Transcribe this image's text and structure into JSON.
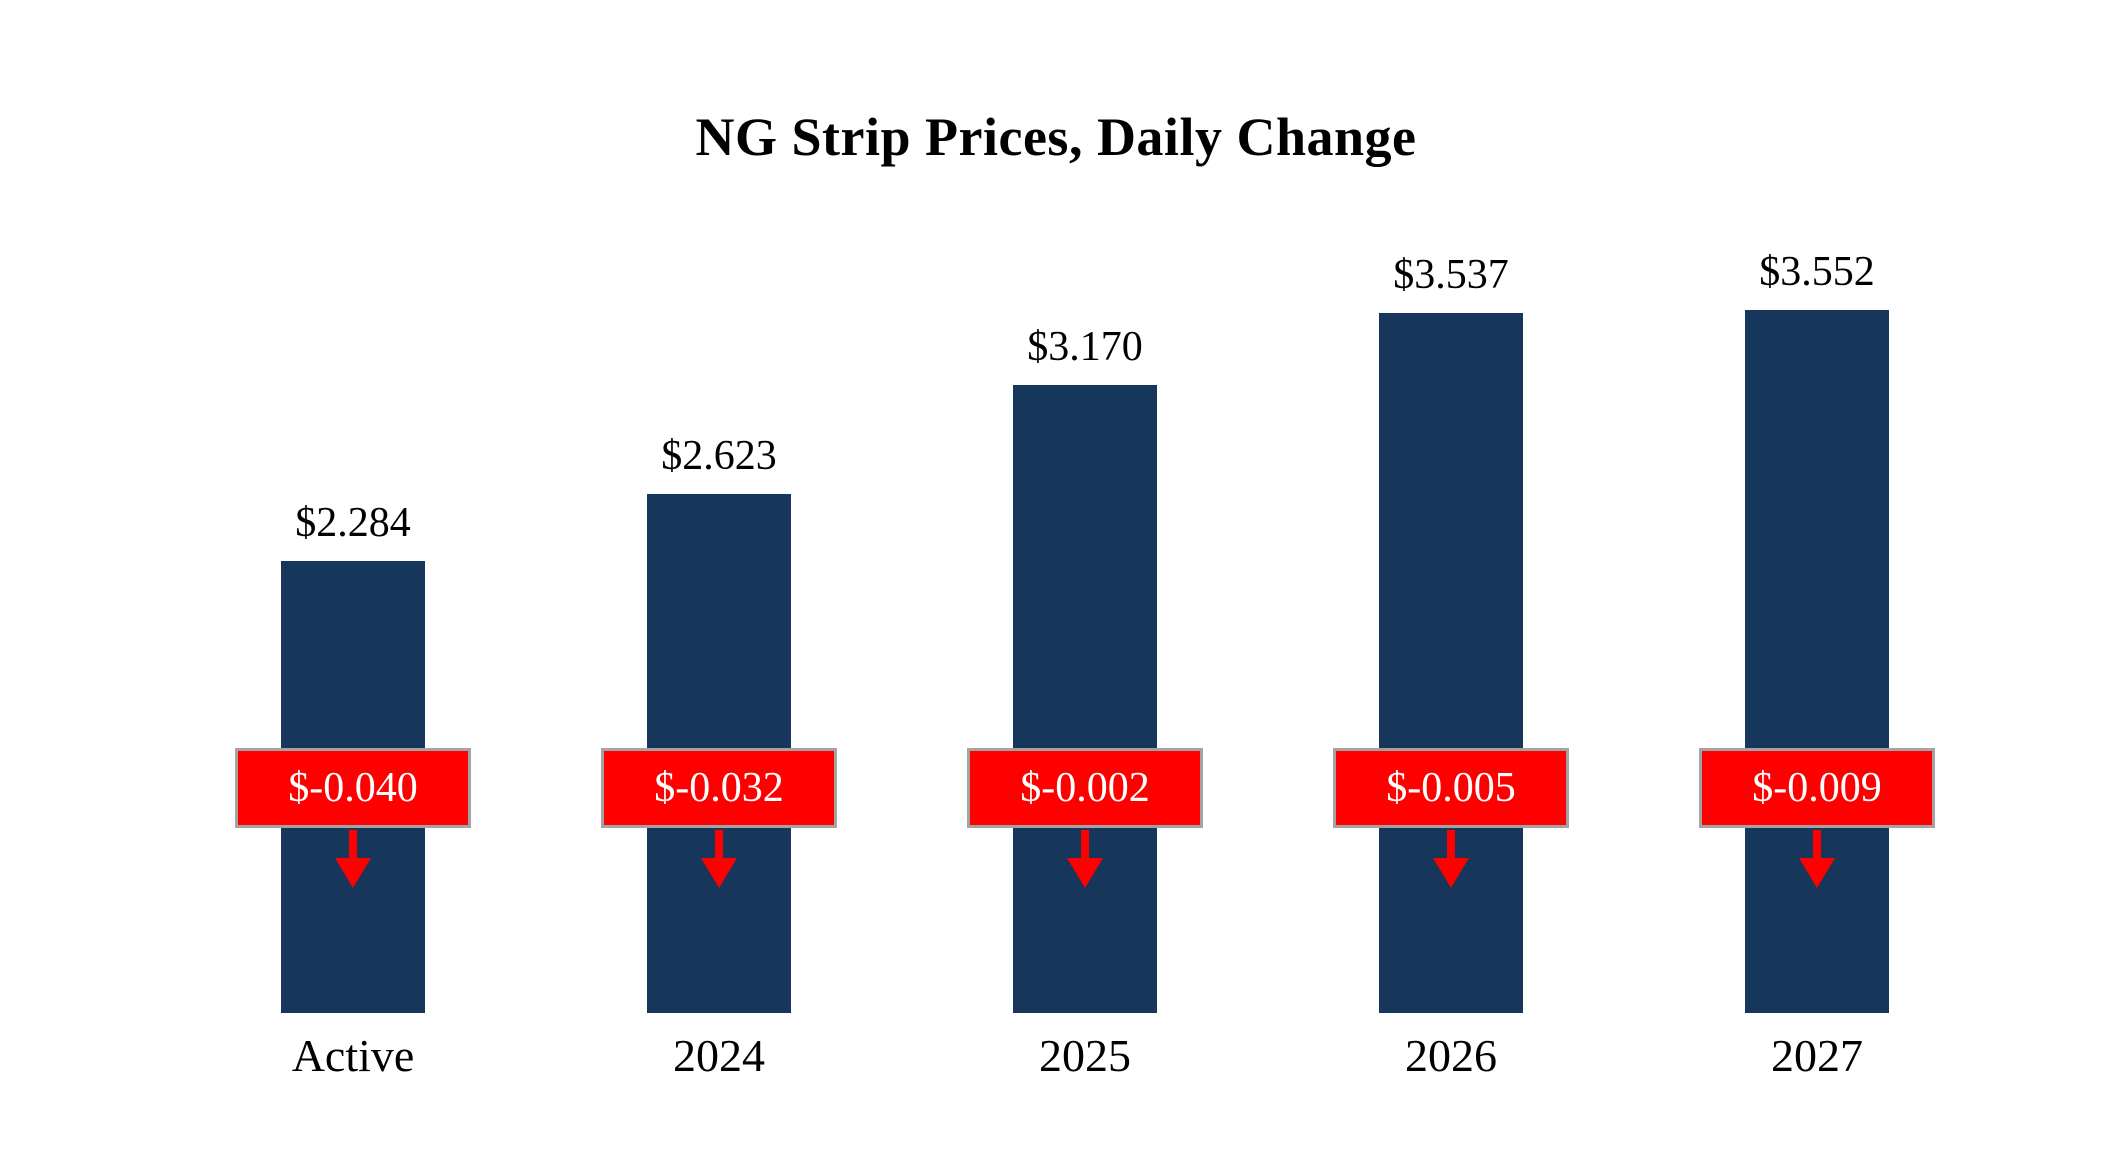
{
  "title": "NG Strip Prices, Daily Change",
  "chart_data": {
    "type": "bar",
    "title": "NG Strip Prices, Daily Change",
    "xlabel": "",
    "ylabel": "",
    "categories": [
      "Active",
      "2024",
      "2025",
      "2026",
      "2027"
    ],
    "values": [
      2.284,
      2.623,
      3.17,
      3.537,
      3.552
    ],
    "value_labels": [
      "$2.284",
      "$2.623",
      "$3.170",
      "$3.537",
      "$3.552"
    ],
    "changes": [
      -0.04,
      -0.032,
      -0.002,
      -0.005,
      -0.009
    ],
    "change_labels": [
      "$-0.040",
      "$-0.032",
      "$-0.002",
      "$-0.005",
      "$-0.009"
    ],
    "change_direction": "down",
    "ylim": [
      0,
      3.9
    ],
    "grid": false,
    "legend": "none",
    "bar_color": "#16365C",
    "change_color": "#FF0000",
    "change_text_color": "#FFFFFF",
    "change_border_color": "#A3A3A3",
    "background_color": "#FFFFFF"
  }
}
